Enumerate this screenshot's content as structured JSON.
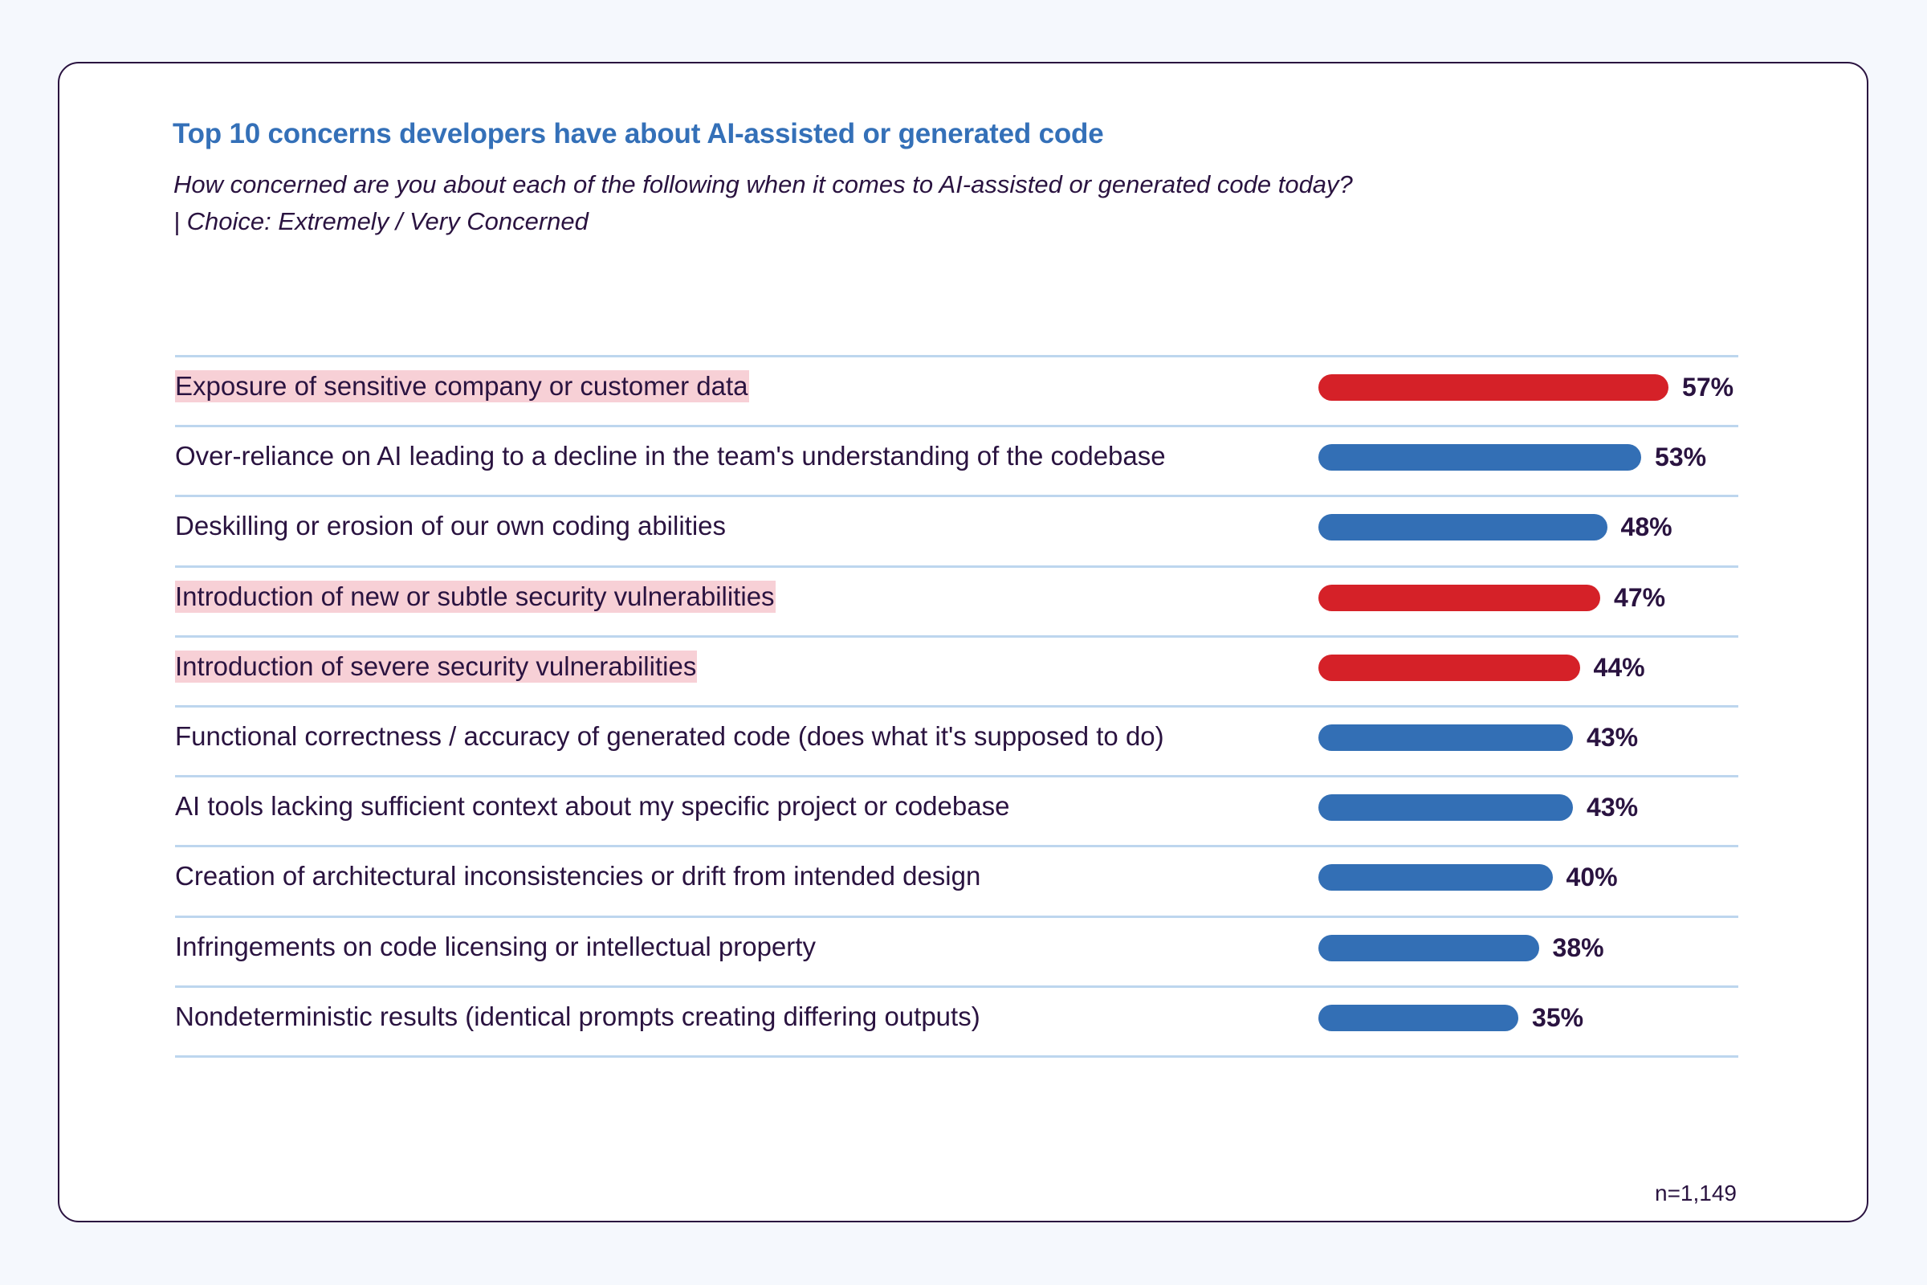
{
  "chart_data": {
    "type": "bar",
    "orientation": "horizontal",
    "title": "Top 10 concerns developers have about AI-assisted or generated code",
    "subtitle_lines": [
      "How concerned are you about each of the following when it comes to AI-assisted or generated code today?",
      "| Choice: Extremely / Very Concerned"
    ],
    "xlabel": "",
    "ylabel": "",
    "unit": "%",
    "categories": [
      "Exposure of sensitive company or customer data",
      "Over-reliance on AI leading to a decline in the team's understanding of the codebase",
      "Deskilling or erosion of our own coding abilities",
      "Introduction of new or subtle security vulnerabilities",
      "Introduction of severe security vulnerabilities",
      "Functional correctness / accuracy of generated code (does what it's supposed to do)",
      "AI tools lacking sufficient context about my specific project or codebase",
      "Creation of architectural inconsistencies or drift from intended design",
      "Infringements on code licensing or intellectual property",
      "Nondeterministic results (identical prompts creating differing outputs)"
    ],
    "values": [
      57,
      53,
      48,
      47,
      44,
      43,
      43,
      40,
      38,
      35
    ],
    "labels": [
      "57%",
      "53%",
      "48%",
      "47%",
      "44%",
      "43%",
      "43%",
      "40%",
      "38%",
      "35%"
    ],
    "highlighted": [
      true,
      false,
      false,
      true,
      true,
      false,
      false,
      false,
      false,
      false
    ],
    "colors": {
      "highlight_bar": "#d52128",
      "default_bar": "#336fb5",
      "highlight_label_bg": "#f7d0d6",
      "title": "#3470b8",
      "text": "#2a1340",
      "divider": "#bdd6ee"
    },
    "grid": false,
    "legend": "none",
    "footnote": "n=1,149"
  }
}
